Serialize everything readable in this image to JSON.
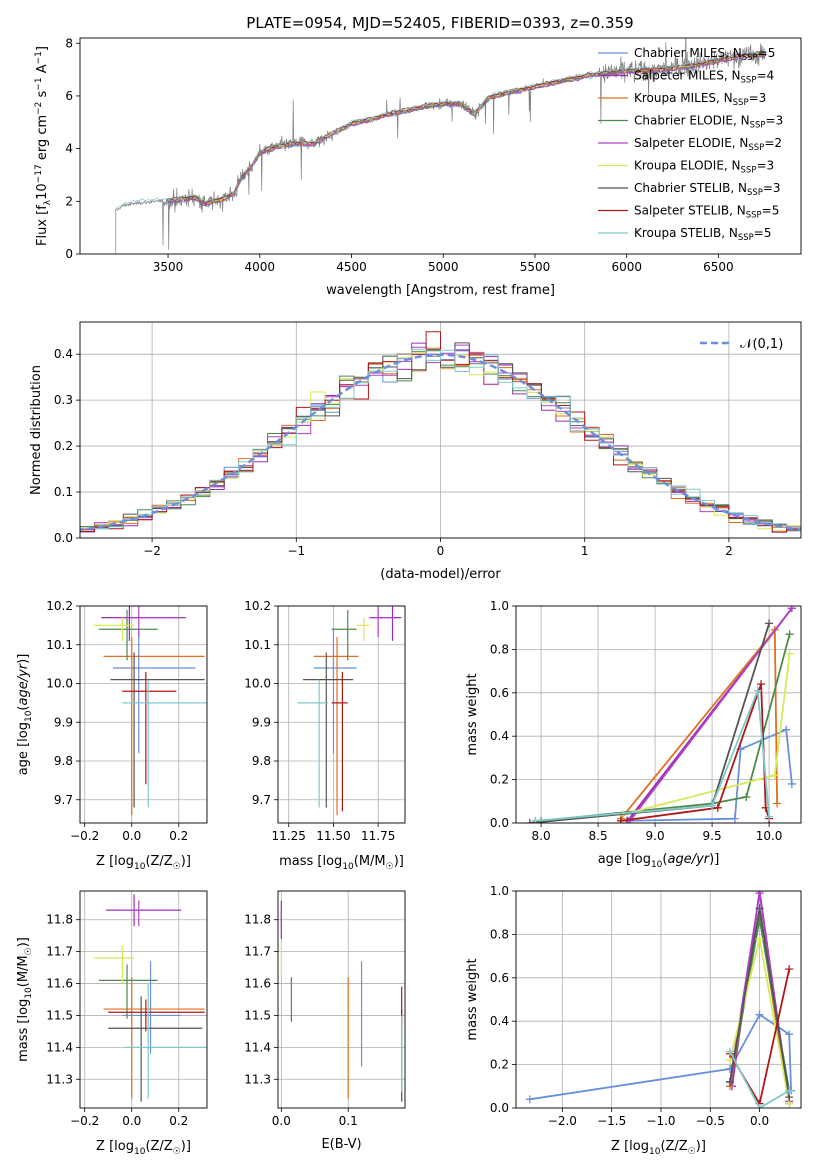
{
  "figure": {
    "title": "PLATE=0954, MJD=52405, FIBERID=0393, z=0.359"
  },
  "models": [
    {
      "name": "Chabrier MILES",
      "nssp": "5",
      "color": "#6a8fdb"
    },
    {
      "name": "Salpeter MILES",
      "nssp": "4",
      "color": "#9b2db5"
    },
    {
      "name": "Kroupa MILES",
      "nssp": "3",
      "color": "#e07020"
    },
    {
      "name": "Chabrier ELODIE",
      "nssp": "3",
      "color": "#4e8a4e"
    },
    {
      "name": "Salpeter ELODIE",
      "nssp": "2",
      "color": "#b040c8"
    },
    {
      "name": "Kroupa ELODIE",
      "nssp": "3",
      "color": "#d8e858"
    },
    {
      "name": "Chabrier STELIB",
      "nssp": "3",
      "color": "#555555"
    },
    {
      "name": "Salpeter STELIB",
      "nssp": "5",
      "color": "#b01818"
    },
    {
      "name": "Kroupa STELIB",
      "nssp": "5",
      "color": "#80c8cc"
    }
  ],
  "chart_data": [
    {
      "id": "spectrum",
      "type": "line",
      "title": "PLATE=0954, MJD=52405, FIBERID=0393, z=0.359",
      "xlabel": "wavelength [Angstrom, rest frame]",
      "ylabel": "Flux [f_λ 10^-17 erg cm^-2 s^-1 A^-1]",
      "xlim": [
        3020,
        6950
      ],
      "ylim": [
        0,
        8.2
      ],
      "xticks": [
        3500,
        4000,
        4500,
        5000,
        5500,
        6000,
        6500
      ],
      "yticks": [
        0,
        2,
        4,
        6,
        8
      ],
      "grid": false,
      "legend": "upper right",
      "data_color": "#808080",
      "continuum": [
        [
          3215,
          1.65
        ],
        [
          3260,
          1.85
        ],
        [
          3350,
          1.95
        ],
        [
          3450,
          2.0
        ],
        [
          3550,
          2.05
        ],
        [
          3650,
          2.15
        ],
        [
          3700,
          1.9
        ],
        [
          3800,
          2.1
        ],
        [
          3860,
          2.3
        ],
        [
          3900,
          2.9
        ],
        [
          3950,
          3.3
        ],
        [
          4000,
          3.85
        ],
        [
          4100,
          4.1
        ],
        [
          4200,
          4.2
        ],
        [
          4300,
          4.2
        ],
        [
          4400,
          4.6
        ],
        [
          4500,
          4.95
        ],
        [
          4600,
          5.1
        ],
        [
          4700,
          5.3
        ],
        [
          4800,
          5.45
        ],
        [
          4900,
          5.6
        ],
        [
          5000,
          5.7
        ],
        [
          5100,
          5.7
        ],
        [
          5170,
          5.3
        ],
        [
          5250,
          5.95
        ],
        [
          5400,
          6.2
        ],
        [
          5600,
          6.5
        ],
        [
          5800,
          6.8
        ],
        [
          6000,
          6.95
        ],
        [
          6200,
          7.0
        ],
        [
          6400,
          7.2
        ],
        [
          6600,
          7.5
        ],
        [
          6760,
          7.6
        ]
      ]
    },
    {
      "id": "residuals",
      "type": "histogram",
      "xlabel": "(data-model)/error",
      "ylabel": "Normed distribution",
      "xlim": [
        -2.5,
        2.5
      ],
      "ylim": [
        0,
        0.47
      ],
      "xticks": [
        -2,
        -1,
        0,
        1,
        2
      ],
      "yticks": [
        0.0,
        0.1,
        0.2,
        0.3,
        0.4
      ],
      "grid": true,
      "legend": "upper right",
      "reference_label": "𝒩(0,1)",
      "bin_width": 0.1
    },
    {
      "id": "age-vs-Z",
      "type": "errorbar",
      "xlabel": "Z [log10(Z/Z☉)]",
      "ylabel": "age [log10(age/yr)]",
      "xlim": [
        -0.22,
        0.32
      ],
      "ylim": [
        9.64,
        10.2
      ],
      "xticks": [
        -0.2,
        0.0,
        0.2
      ],
      "yticks": [
        9.7,
        9.8,
        9.9,
        10.0,
        10.1,
        10.2
      ],
      "grid": true,
      "points": [
        {
          "x": 0.03,
          "y": 10.04,
          "xerr": [
            0.11,
            0.24
          ],
          "yerr": [
            0.22,
            0.1
          ]
        },
        {
          "x": -0.01,
          "y": 10.17,
          "xerr": [
            0.12,
            0.24
          ],
          "yerr": [
            0.06,
            0.03
          ]
        },
        {
          "x": 0.0,
          "y": 10.07,
          "xerr": [
            0.12,
            0.31
          ],
          "yerr": [
            0.41,
            0.05
          ]
        },
        {
          "x": -0.02,
          "y": 10.14,
          "xerr": [
            0.12,
            0.13
          ],
          "yerr": [
            0.08,
            0.05
          ]
        },
        {
          "x": 0.03,
          "y": 10.17,
          "xerr": [
            0.1,
            0.18
          ],
          "yerr": [
            0.05,
            0.03
          ]
        },
        {
          "x": -0.04,
          "y": 10.15,
          "xerr": [
            0.12,
            0.05
          ],
          "yerr": [
            0.04,
            0.02
          ]
        },
        {
          "x": 0.01,
          "y": 10.01,
          "xerr": [
            0.1,
            0.3
          ],
          "yerr": [
            0.33,
            0.07
          ]
        },
        {
          "x": 0.06,
          "y": 9.98,
          "xerr": [
            0.1,
            0.13
          ],
          "yerr": [
            0.24,
            0.05
          ]
        },
        {
          "x": 0.07,
          "y": 9.95,
          "xerr": [
            0.11,
            0.25
          ],
          "yerr": [
            0.27,
            0.06
          ]
        }
      ]
    },
    {
      "id": "age-vs-mass",
      "type": "errorbar",
      "xlabel": "mass [log10(M/M☉)]",
      "ylabel": "",
      "xlim": [
        11.19,
        11.9
      ],
      "ylim": [
        9.64,
        10.2
      ],
      "xticks": [
        11.25,
        11.5,
        11.75
      ],
      "yticks": [
        9.7,
        9.8,
        9.9,
        10.0,
        10.1,
        10.2
      ],
      "grid": true,
      "points": [
        {
          "x": 11.5,
          "y": 10.04,
          "xerr": [
            0.11,
            0.13
          ],
          "yerr": [
            0.22,
            0.1
          ]
        },
        {
          "x": 11.83,
          "y": 10.17,
          "xerr": [
            0.12,
            0.05
          ],
          "yerr": [
            0.06,
            0.03
          ]
        },
        {
          "x": 11.52,
          "y": 10.07,
          "xerr": [
            0.13,
            0.12
          ],
          "yerr": [
            0.41,
            0.05
          ]
        },
        {
          "x": 11.58,
          "y": 10.14,
          "xerr": [
            0.09,
            0.05
          ],
          "yerr": [
            0.08,
            0.05
          ]
        },
        {
          "x": 11.75,
          "y": 10.17,
          "xerr": [
            0.05,
            0.09
          ],
          "yerr": [
            0.05,
            0.03
          ]
        },
        {
          "x": 11.67,
          "y": 10.15,
          "xerr": [
            0.04,
            0.03
          ],
          "yerr": [
            0.04,
            0.02
          ]
        },
        {
          "x": 11.46,
          "y": 10.01,
          "xerr": [
            0.13,
            0.15
          ],
          "yerr": [
            0.33,
            0.07
          ]
        },
        {
          "x": 11.55,
          "y": 9.95,
          "xerr": [
            0.06,
            0.03
          ],
          "yerr": [
            0.28,
            0.08
          ]
        },
        {
          "x": 11.42,
          "y": 9.95,
          "xerr": [
            0.12,
            0.05
          ],
          "yerr": [
            0.27,
            0.06
          ]
        }
      ]
    },
    {
      "id": "massweight-vs-age",
      "type": "line",
      "xlabel": "age [log10(age/yr)]",
      "ylabel": "mass weight",
      "xlim": [
        7.78,
        10.28
      ],
      "ylim": [
        0,
        1.0
      ],
      "xticks": [
        8.0,
        8.5,
        9.0,
        9.5,
        10.0
      ],
      "yticks": [
        0.0,
        0.2,
        0.4,
        0.6,
        0.8,
        1.0
      ],
      "grid": true,
      "series": [
        {
          "x": [
            8.75,
            9.7,
            9.75,
            10.15,
            10.2
          ],
          "y": [
            0.01,
            0.02,
            0.34,
            0.43,
            0.18
          ]
        },
        {
          "x": [
            8.76,
            10.2
          ],
          "y": [
            0.01,
            0.99
          ]
        },
        {
          "x": [
            8.7,
            10.05,
            10.07
          ],
          "y": [
            0.02,
            0.89,
            0.09
          ]
        },
        {
          "x": [
            8.0,
            9.5,
            9.8,
            10.18
          ],
          "y": [
            0.01,
            0.09,
            0.12,
            0.87
          ]
        },
        {
          "x": [
            8.78,
            10.2
          ],
          "y": [
            0.01,
            0.99
          ]
        },
        {
          "x": [
            8.72,
            10.05,
            10.18
          ],
          "y": [
            0.04,
            0.22,
            0.78
          ]
        },
        {
          "x": [
            7.9,
            9.5,
            10.0
          ],
          "y": [
            0.0,
            0.08,
            0.92
          ]
        },
        {
          "x": [
            8.7,
            9.55,
            9.93,
            9.97,
            10.0
          ],
          "y": [
            0.01,
            0.07,
            0.64,
            0.07,
            0.02
          ]
        },
        {
          "x": [
            7.95,
            9.5,
            9.9,
            10.0
          ],
          "y": [
            0.01,
            0.08,
            0.61,
            0.03
          ]
        }
      ]
    },
    {
      "id": "mass-vs-Z",
      "type": "errorbar",
      "xlabel": "Z [log10(Z/Z☉)]",
      "ylabel": "mass [log10(M/M☉)]",
      "xlim": [
        -0.22,
        0.32
      ],
      "ylim": [
        11.21,
        11.89
      ],
      "xticks": [
        -0.2,
        0.0,
        0.2
      ],
      "yticks": [
        11.3,
        11.4,
        11.5,
        11.6,
        11.7,
        11.8
      ],
      "grid": true,
      "points": [
        {
          "x": 0.08,
          "y": 11.5,
          "xerr": [
            0.12,
            0.13
          ],
          "yerr": [
            0.12,
            0.17
          ]
        },
        {
          "x": 0.01,
          "y": 11.83,
          "xerr": [
            0.12,
            0.2
          ],
          "yerr": [
            0.05,
            0.05
          ]
        },
        {
          "x": 0.0,
          "y": 11.52,
          "xerr": [
            0.12,
            0.31
          ],
          "yerr": [
            0.28,
            0.1
          ]
        },
        {
          "x": -0.02,
          "y": 11.61,
          "xerr": [
            0.12,
            0.13
          ],
          "yerr": [
            0.12,
            0.05
          ]
        },
        {
          "x": 0.03,
          "y": 11.83,
          "xerr": [
            0.1,
            0.18
          ],
          "yerr": [
            0.05,
            0.03
          ]
        },
        {
          "x": -0.04,
          "y": 11.68,
          "xerr": [
            0.12,
            0.05
          ],
          "yerr": [
            0.08,
            0.04
          ]
        },
        {
          "x": 0.04,
          "y": 11.46,
          "xerr": [
            0.14,
            0.26
          ],
          "yerr": [
            0.23,
            0.1
          ]
        },
        {
          "x": 0.06,
          "y": 11.51,
          "xerr": [
            0.16,
            0.25
          ],
          "yerr": [
            0.06,
            0.04
          ]
        },
        {
          "x": 0.07,
          "y": 11.4,
          "xerr": [
            0.1,
            0.25
          ],
          "yerr": [
            0.16,
            0.2
          ]
        }
      ]
    },
    {
      "id": "mass-vs-EBV",
      "type": "errorbar",
      "xlabel": "E(B-V)",
      "ylabel": "",
      "xlim": [
        -0.005,
        0.185
      ],
      "ylim": [
        11.21,
        11.89
      ],
      "xticks": [
        0.0,
        0.1
      ],
      "yticks": [
        11.3,
        11.4,
        11.5,
        11.6,
        11.7,
        11.8
      ],
      "grid": true,
      "points": [
        {
          "x": 0.12,
          "y": 11.5,
          "xerr": [
            0,
            0
          ],
          "yerr": [
            0.16,
            0.17
          ]
        },
        {
          "x": 0.0,
          "y": 11.8,
          "xerr": [
            0,
            0
          ],
          "yerr": [
            0.06,
            0.06
          ]
        },
        {
          "x": 0.1,
          "y": 11.45,
          "xerr": [
            0,
            0
          ],
          "yerr": [
            0.21,
            0.17
          ]
        },
        {
          "x": 0.015,
          "y": 11.54,
          "xerr": [
            0,
            0
          ],
          "yerr": [
            0.06,
            0.08
          ]
        },
        {
          "x": 0.0,
          "y": 11.8,
          "xerr": [
            0,
            0
          ],
          "yerr": [
            0.03,
            0.03
          ]
        },
        {
          "x": 0.0,
          "y": 11.68,
          "xerr": [
            0,
            0
          ],
          "yerr": [
            0.06,
            0.04
          ]
        },
        {
          "x": 0.18,
          "y": 11.4,
          "xerr": [
            0,
            0
          ],
          "yerr": [
            0.17,
            0.12
          ]
        },
        {
          "x": 0.18,
          "y": 11.52,
          "xerr": [
            0,
            0
          ],
          "yerr": [
            0.05,
            0.07
          ]
        },
        {
          "x": 0.18,
          "y": 11.38,
          "xerr": [
            0,
            0
          ],
          "yerr": [
            0.12,
            0.12
          ]
        }
      ]
    },
    {
      "id": "massweight-vs-Z",
      "type": "line",
      "xlabel": "Z [log10(Z/Z☉)]",
      "ylabel": "mass weight",
      "xlim": [
        -2.47,
        0.42
      ],
      "ylim": [
        0,
        1.0
      ],
      "xticks": [
        -2.0,
        -1.5,
        -1.0,
        -0.5,
        0.0
      ],
      "yticks": [
        0.0,
        0.2,
        0.4,
        0.6,
        0.8,
        1.0
      ],
      "grid": true,
      "series": [
        {
          "x": [
            -2.33,
            -0.3,
            0.0,
            0.3,
            0.32
          ],
          "y": [
            0.04,
            0.18,
            0.43,
            0.34,
            0.08
          ]
        },
        {
          "x": [
            -0.28,
            0.0,
            0.3
          ],
          "y": [
            0.1,
            1.0,
            0.03
          ]
        },
        {
          "x": [
            -0.3,
            0.0,
            0.3
          ],
          "y": [
            0.1,
            0.89,
            0.02
          ]
        },
        {
          "x": [
            -0.3,
            0.0,
            0.3
          ],
          "y": [
            0.12,
            0.87,
            0.08
          ]
        },
        {
          "x": [
            -0.3,
            0.0,
            0.3
          ],
          "y": [
            0.12,
            0.99,
            0.03
          ]
        },
        {
          "x": [
            -0.3,
            0.0,
            0.3
          ],
          "y": [
            0.22,
            0.78,
            0.02
          ]
        },
        {
          "x": [
            -0.3,
            0.0,
            0.3
          ],
          "y": [
            0.12,
            0.92,
            0.05
          ]
        },
        {
          "x": [
            -0.3,
            0.0,
            0.3
          ],
          "y": [
            0.25,
            0.02,
            0.64
          ]
        },
        {
          "x": [
            -0.3,
            0.0,
            0.3
          ],
          "y": [
            0.26,
            0.0,
            0.08
          ]
        }
      ]
    }
  ]
}
